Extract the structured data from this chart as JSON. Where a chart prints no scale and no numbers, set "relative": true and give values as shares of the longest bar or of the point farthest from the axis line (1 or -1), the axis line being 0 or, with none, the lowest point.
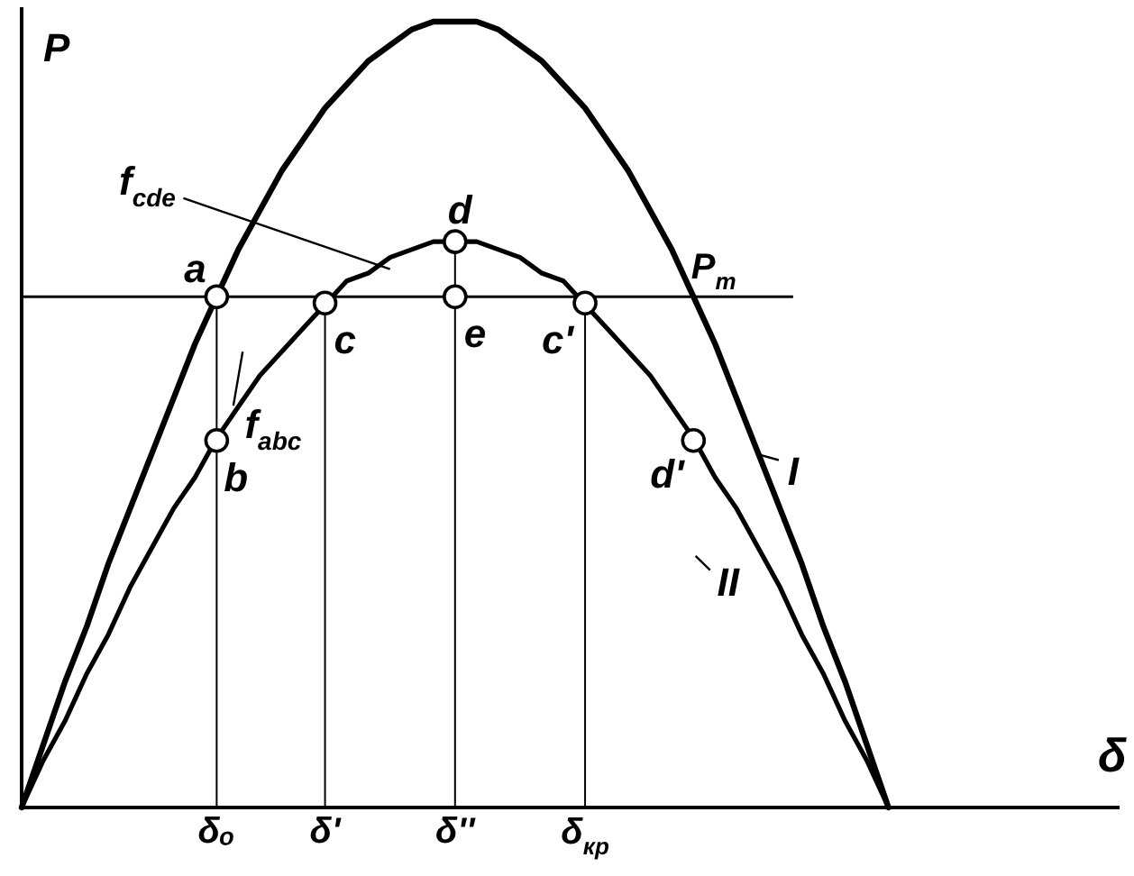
{
  "chart_data": {
    "type": "line",
    "relative": true,
    "xlabel": "δ",
    "ylabel": "P",
    "legend": false,
    "grid": "x",
    "marker": "none",
    "line_style": "solid",
    "categories": [
      null,
      null,
      null,
      null,
      null,
      null,
      null,
      null,
      null,
      "δₒ",
      null,
      null,
      null,
      null,
      "δ'",
      null,
      null,
      null,
      null,
      null,
      "δ''",
      null,
      null,
      null,
      null,
      null,
      "δ$_{кр}$",
      null,
      null,
      null,
      null,
      null,
      null,
      null,
      null,
      null,
      null,
      null,
      null,
      null,
      null,
      null,
      null,
      null,
      null,
      null,
      null,
      null,
      null,
      null
    ],
    "series": [
      {
        "color": "#000000",
        "values": [
          0,
          0.08,
          0.16,
          0.23,
          0.31,
          0.38,
          0.45,
          0.52,
          0.59,
          0.65,
          0.71,
          0.76,
          0.81,
          0.85,
          0.89,
          0.92,
          0.95,
          0.97,
          0.99,
          1,
          1,
          1,
          0.99,
          0.97,
          0.95,
          0.92,
          0.89,
          0.85,
          0.81,
          0.76,
          0.71,
          0.65,
          0.59,
          0.52,
          0.45,
          0.38,
          0.31,
          0.23,
          0.16,
          0.08,
          0,
          null,
          null,
          null,
          null,
          null,
          null,
          null,
          null,
          null
        ]
      },
      {
        "color": "#000000",
        "values": [
          0,
          0.06,
          0.11,
          0.17,
          0.22,
          0.28,
          0.33,
          0.38,
          0.42,
          0.47,
          0.51,
          0.55,
          0.58,
          0.61,
          0.64,
          0.67,
          0.68,
          0.7,
          0.71,
          0.72,
          0.72,
          0.72,
          0.71,
          0.7,
          0.68,
          0.67,
          0.64,
          0.61,
          0.58,
          0.55,
          0.51,
          0.47,
          0.42,
          0.38,
          0.33,
          0.28,
          0.22,
          0.17,
          0.11,
          0.06,
          0,
          null,
          null,
          null,
          null,
          null,
          null,
          null,
          null,
          null
        ]
      },
      {
        "type": "scatter",
        "marker": "circle",
        "color": "#000000",
        "values": [
          null,
          null,
          null,
          null,
          null,
          null,
          null,
          null,
          null,
          null,
          null,
          null,
          null,
          null,
          null,
          null,
          null,
          null,
          null,
          null,
          0.65,
          null,
          null,
          null,
          null,
          null,
          null,
          null,
          null,
          null,
          null,
          null,
          null,
          null,
          null,
          null,
          null,
          null,
          null,
          null,
          null,
          null,
          null,
          null,
          null,
          null,
          null,
          null,
          null,
          null
        ]
      }
    ],
    "ref_lines": [
      {
        "axis": "y",
        "value": 0.65,
        "label": "P$_{т}$",
        "color": "#000000"
      }
    ],
    "annotations": [
      "a",
      "b",
      "c",
      "d",
      "e",
      "c'",
      "d'",
      "f$_{cde}$",
      "f$_{abc}$",
      "I",
      "II"
    ]
  }
}
